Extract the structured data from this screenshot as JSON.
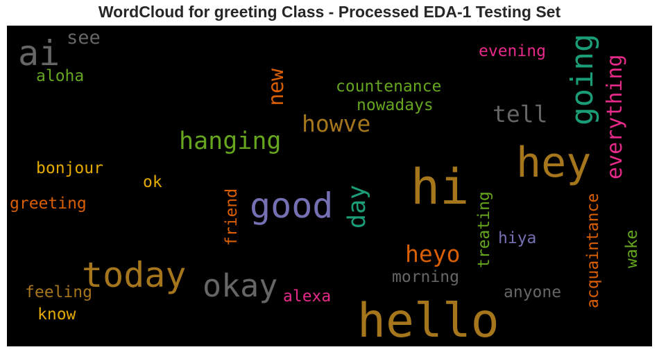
{
  "title": "WordCloud for greeting Class - Processed EDA-1 Testing Set",
  "palette": {
    "background": "#000000",
    "gold": "#a6761d",
    "green": "#66a61e",
    "teal": "#1b9e77",
    "orange": "#d95f02",
    "pink": "#e7298a",
    "purple": "#7570b3",
    "amber": "#e6ab02",
    "gray": "#666666"
  },
  "words": {
    "ai": "ai",
    "see": "see",
    "aloha": "aloha",
    "new": "new",
    "countenance": "countenance",
    "nowadays": "nowadays",
    "going": "going",
    "evening": "evening",
    "everything": "everything",
    "tell": "tell",
    "howve": "howve",
    "hanging": "hanging",
    "hey": "hey",
    "bonjour": "bonjour",
    "hi": "hi",
    "ok": "ok",
    "friend": "friend",
    "good": "good",
    "day": "day",
    "greeting": "greeting",
    "treating": "treating",
    "acquaintance": "acquaintance",
    "hiya": "hiya",
    "wake": "wake",
    "heyo": "heyo",
    "today": "today",
    "okay": "okay",
    "morning": "morning",
    "feeling": "feeling",
    "alexa": "alexa",
    "anyone": "anyone",
    "know": "know",
    "hello": "hello"
  }
}
